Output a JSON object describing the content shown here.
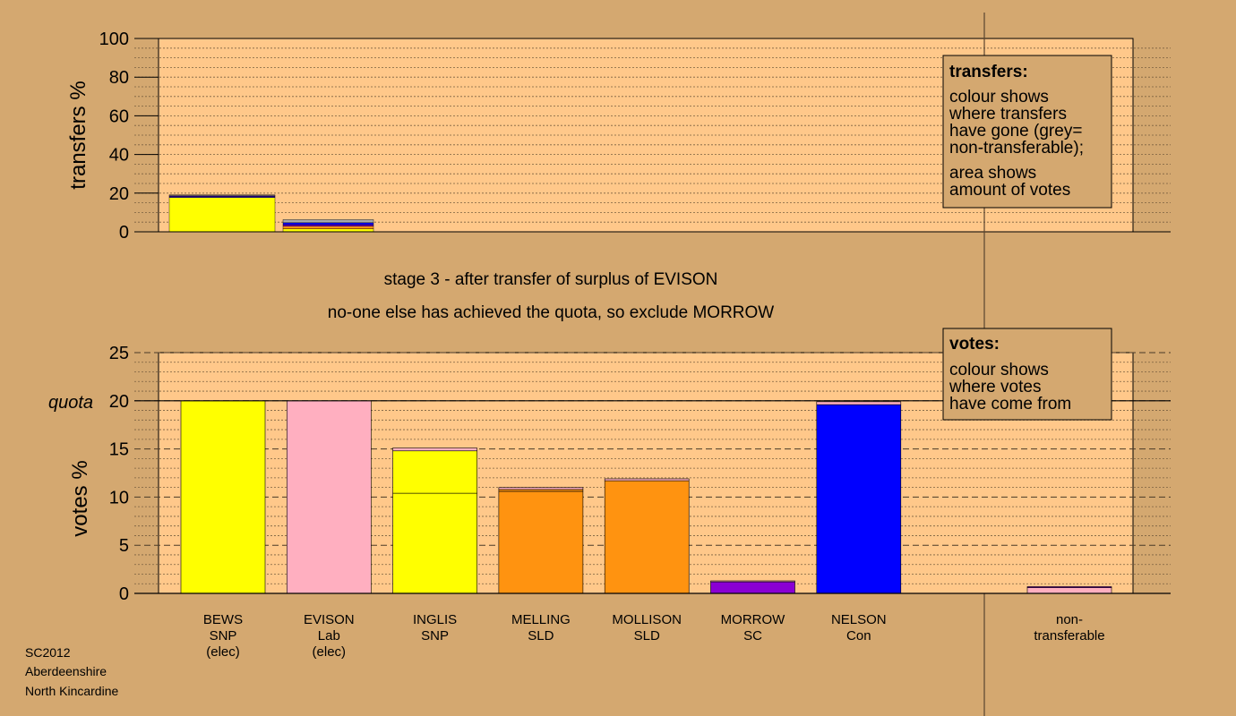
{
  "colors": {
    "background": "#d4a870",
    "plot_background": "#ffc88a",
    "SNP": "#ffff00",
    "Lab": "#ffafc0",
    "SLD": "#ff9310",
    "SC": "#8a00d4",
    "Con": "#0000ff",
    "non_transferable": "#aaaaaa"
  },
  "chart_data": [
    {
      "type": "bar",
      "name": "transfers",
      "ylabel": "transfers %",
      "ylim": [
        0,
        100
      ],
      "yticks": [
        0,
        20,
        40,
        60,
        80,
        100
      ],
      "bars": [
        {
          "candidate": "BEWS",
          "segments": [
            {
              "party": "SNP",
              "value": 17.8
            },
            {
              "party": "Con",
              "value": 0.5
            },
            {
              "party": "SC",
              "value": 0.4
            },
            {
              "party": "non_transferable",
              "value": 0.4
            }
          ]
        },
        {
          "candidate": "EVISON",
          "segments": [
            {
              "party": "SNP",
              "value": 1.5
            },
            {
              "party": "SLD",
              "value": 1.4
            },
            {
              "party": "SC",
              "value": 0.8
            },
            {
              "party": "Con",
              "value": 1.0
            },
            {
              "party": "non_transferable",
              "value": 1.6
            }
          ]
        }
      ],
      "legend": {
        "title": "transfers:",
        "lines_a": [
          "colour shows",
          "where transfers",
          "have gone (grey=",
          "non-transferable);"
        ],
        "lines_b": [
          "area shows",
          "amount of votes"
        ]
      }
    },
    {
      "type": "bar",
      "name": "votes",
      "ylabel": "votes %",
      "ylim": [
        0,
        25
      ],
      "yticks": [
        0,
        5,
        10,
        15,
        20,
        25
      ],
      "quota": 20,
      "quota_label": "quota",
      "categories": [
        {
          "name": "BEWS",
          "party": "SNP",
          "status": "(elec)"
        },
        {
          "name": "EVISON",
          "party": "Lab",
          "status": "(elec)"
        },
        {
          "name": "INGLIS",
          "party": "SNP",
          "status": ""
        },
        {
          "name": "MELLING",
          "party": "SLD",
          "status": ""
        },
        {
          "name": "MOLLISON",
          "party": "SLD",
          "status": ""
        },
        {
          "name": "MORROW",
          "party": "SC",
          "status": ""
        },
        {
          "name": "NELSON",
          "party": "Con",
          "status": ""
        }
      ],
      "bars": [
        [
          {
            "party": "SNP",
            "value": 20.0
          }
        ],
        [
          {
            "party": "Lab",
            "value": 20.0
          }
        ],
        [
          {
            "party": "SNP",
            "value": 10.4
          },
          {
            "party": "SNP",
            "value": 4.4
          },
          {
            "party": "Lab",
            "value": 0.3
          }
        ],
        [
          {
            "party": "SLD",
            "value": 10.6
          },
          {
            "party": "SLD",
            "value": 0.2
          },
          {
            "party": "Lab",
            "value": 0.2
          }
        ],
        [
          {
            "party": "SLD",
            "value": 11.7
          },
          {
            "party": "Lab",
            "value": 0.2
          }
        ],
        [
          {
            "party": "SC",
            "value": 1.2
          },
          {
            "party": "Lab",
            "value": 0.1
          }
        ],
        [
          {
            "party": "Con",
            "value": 19.6
          },
          {
            "party": "Lab",
            "value": 0.3
          }
        ]
      ],
      "non_transferable": {
        "label_line1": "non-",
        "label_line2": "transferable",
        "segments": [
          {
            "party": "Lab",
            "value": 0.6
          },
          {
            "party": "SC",
            "value": 0.1
          }
        ]
      },
      "legend": {
        "title": "votes:",
        "lines": [
          "colour shows",
          "where votes",
          "have come from"
        ]
      }
    }
  ],
  "stage_text": {
    "line1": "stage 3 - after transfer of surplus of EVISON",
    "line2": "no-one else has achieved the quota, so exclude MORROW"
  },
  "footer": {
    "line1": "SC2012",
    "line2": "Aberdeenshire",
    "line3": "North Kincardine"
  }
}
